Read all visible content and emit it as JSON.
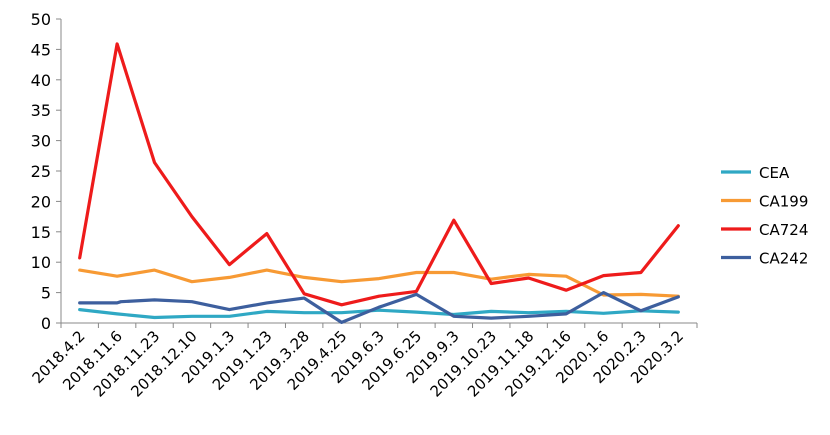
{
  "chart_data": {
    "type": "line",
    "categories": [
      "2018.4.2",
      "2018.11.6",
      "2018.11.23",
      "2018.12.10",
      "2019.1.3",
      "2019.1.23",
      "2019.3.28",
      "2019.4.25",
      "2019.6.3",
      "2019.6.25",
      "2019.9.3",
      "2019.10.23",
      "2019.11.18",
      "2019.12.16",
      "2020.1.6",
      "2020.2.3",
      "2020.3.2"
    ],
    "x": [
      0,
      1,
      2,
      3,
      4,
      5,
      6,
      7,
      8,
      9,
      10,
      11,
      12,
      13,
      14,
      15,
      16
    ],
    "ylim": [
      0,
      50
    ],
    "yticks": [
      0,
      5,
      10,
      15,
      20,
      25,
      30,
      35,
      40,
      45,
      50
    ],
    "grid": false,
    "legend_position": "right",
    "title": "",
    "xlabel": "",
    "ylabel": "",
    "series": [
      {
        "name": "CEA",
        "color": "#2fa8c4",
        "x": [
          0,
          1,
          2,
          3,
          4,
          5,
          6,
          7,
          8,
          9,
          10,
          11,
          12,
          13,
          14,
          15,
          16
        ],
        "values": [
          2.2,
          1.5,
          0.9,
          1.1,
          1.1,
          1.9,
          1.7,
          1.7,
          2.1,
          1.8,
          1.4,
          1.9,
          1.7,
          1.9,
          1.6,
          2.0,
          1.8
        ]
      },
      {
        "name": "CA199",
        "color": "#f79a34",
        "x": [
          0,
          1,
          2,
          3,
          4,
          5,
          6,
          7,
          8,
          9,
          10,
          11,
          12,
          13,
          14,
          15,
          16
        ],
        "values": [
          8.7,
          7.7,
          8.7,
          6.8,
          7.5,
          8.7,
          7.5,
          6.8,
          7.3,
          8.3,
          8.3,
          7.2,
          8.0,
          7.7,
          4.6,
          4.7,
          4.4
        ]
      },
      {
        "name": "CA724",
        "color": "#ee1b1b",
        "x": [
          0,
          1,
          2,
          3,
          4,
          5,
          6,
          7,
          8,
          9,
          10,
          11,
          12,
          13,
          14,
          15,
          16
        ],
        "values": [
          10.7,
          45.9,
          26.4,
          17.5,
          9.6,
          14.7,
          4.8,
          3.0,
          4.4,
          5.2,
          16.9,
          6.5,
          7.4,
          5.4,
          7.8,
          8.3,
          16.0
        ]
      },
      {
        "name": "CA242",
        "color": "#3d5f9e",
        "x": [
          0,
          1,
          1.1,
          2,
          3,
          4,
          5,
          6,
          7,
          8,
          9,
          10,
          11,
          12,
          13,
          14,
          15,
          16
        ],
        "values": [
          3.3,
          3.3,
          3.5,
          3.8,
          3.5,
          2.2,
          3.3,
          4.1,
          0.1,
          2.6,
          4.7,
          1.1,
          0.8,
          1.1,
          1.5,
          5.0,
          2.0,
          4.3
        ]
      }
    ]
  }
}
